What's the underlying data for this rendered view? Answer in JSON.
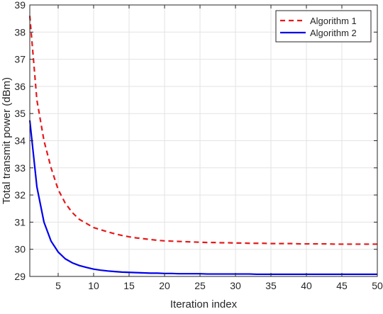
{
  "chart_data": {
    "type": "line",
    "title": "",
    "xlabel": "Iteration index",
    "ylabel": "Total transmit power (dBm)",
    "xlim": [
      1,
      50
    ],
    "ylim": [
      29,
      39
    ],
    "xticks": [
      5,
      10,
      15,
      20,
      25,
      30,
      35,
      40,
      45,
      50
    ],
    "yticks": [
      29,
      30,
      31,
      32,
      33,
      34,
      35,
      36,
      37,
      38,
      39
    ],
    "grid": true,
    "legend_position": "top-right",
    "series": [
      {
        "name": "Algorithm 1",
        "color": "#e41a1c",
        "style": "dashed",
        "x": [
          1,
          2,
          3,
          4,
          5,
          6,
          7,
          8,
          9,
          10,
          11,
          12,
          13,
          14,
          15,
          16,
          17,
          18,
          19,
          20,
          21,
          22,
          23,
          24,
          25,
          26,
          27,
          28,
          29,
          30,
          31,
          32,
          33,
          34,
          35,
          36,
          37,
          38,
          39,
          40,
          41,
          42,
          43,
          44,
          45,
          46,
          47,
          48,
          49,
          50
        ],
        "y": [
          38.6,
          35.5,
          34.0,
          33.0,
          32.2,
          31.7,
          31.35,
          31.1,
          30.95,
          30.8,
          30.72,
          30.64,
          30.57,
          30.51,
          30.46,
          30.42,
          30.39,
          30.36,
          30.33,
          30.31,
          30.3,
          30.29,
          30.28,
          30.27,
          30.26,
          30.25,
          30.25,
          30.24,
          30.24,
          30.23,
          30.23,
          30.22,
          30.22,
          30.22,
          30.21,
          30.21,
          30.21,
          30.21,
          30.2,
          30.2,
          30.2,
          30.2,
          30.2,
          30.19,
          30.19,
          30.19,
          30.19,
          30.19,
          30.19,
          30.19
        ]
      },
      {
        "name": "Algorithm 2",
        "color": "#0000ee",
        "style": "solid",
        "x": [
          1,
          2,
          3,
          4,
          5,
          6,
          7,
          8,
          9,
          10,
          11,
          12,
          13,
          14,
          15,
          16,
          17,
          18,
          19,
          20,
          21,
          22,
          23,
          24,
          25,
          26,
          27,
          28,
          29,
          30,
          31,
          32,
          33,
          34,
          35,
          36,
          37,
          38,
          39,
          40,
          41,
          42,
          43,
          44,
          45,
          46,
          47,
          48,
          49,
          50
        ],
        "y": [
          34.75,
          32.3,
          31.0,
          30.3,
          29.9,
          29.65,
          29.5,
          29.4,
          29.33,
          29.27,
          29.23,
          29.2,
          29.18,
          29.16,
          29.15,
          29.14,
          29.13,
          29.12,
          29.12,
          29.11,
          29.11,
          29.1,
          29.1,
          29.1,
          29.1,
          29.09,
          29.09,
          29.09,
          29.09,
          29.09,
          29.09,
          29.09,
          29.08,
          29.08,
          29.08,
          29.08,
          29.08,
          29.08,
          29.08,
          29.08,
          29.08,
          29.08,
          29.08,
          29.08,
          29.08,
          29.08,
          29.08,
          29.08,
          29.08,
          29.08
        ]
      }
    ]
  }
}
